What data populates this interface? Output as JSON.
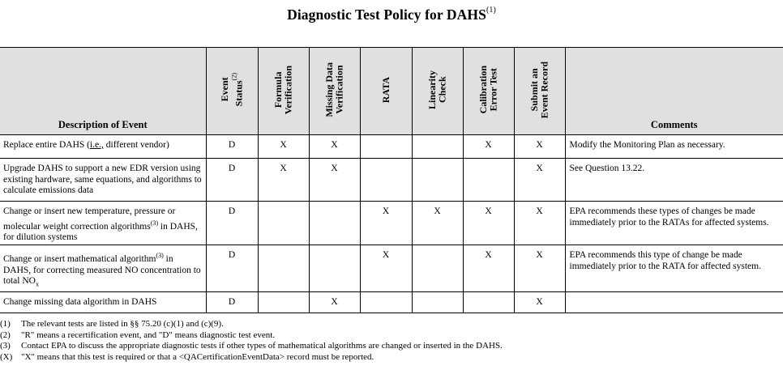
{
  "title": {
    "text": "Diagnostic Test Policy for DAHS",
    "footnote_ref": "(1)"
  },
  "table": {
    "headers": {
      "description": "Description of Event",
      "event_status": "Event\nStatus",
      "event_status_ref": "(2)",
      "formula_verification": "Formula\nVerification",
      "missing_data_verification": "Missing Data\nVerification",
      "rata": "RATA",
      "linearity_check": "Linearity\nCheck",
      "calibration_error_test": "Calibration\nError Test",
      "submit_event_record": "Submit an\nEvent Record",
      "comments": "Comments"
    },
    "rows": [
      {
        "desc_a": "Replace entire DAHS (",
        "desc_b": "i.e.,",
        "desc_c": " different vendor)",
        "status": "D",
        "formula": "X",
        "missing": "X",
        "rata": "",
        "linearity": "",
        "calibration": "X",
        "submit": "X",
        "comment": "Modify the Monitoring Plan as necessary."
      },
      {
        "desc": "Upgrade DAHS to support a new EDR version using existing hardware, same equations, and algorithms to calculate emissions data",
        "status": "D",
        "formula": "X",
        "missing": "X",
        "rata": "",
        "linearity": "",
        "calibration": "",
        "submit": "X",
        "comment": "See Question 13.22."
      },
      {
        "desc_a": "Change or insert new temperature, pressure or molecular weight correction algorithms",
        "desc_ref": "(3)",
        "desc_b": " in DAHS, for dilution systems",
        "status": "D",
        "formula": "",
        "missing": "",
        "rata": "X",
        "linearity": "X",
        "calibration": "X",
        "submit": "X",
        "comment": "EPA recommends these types of changes be made immediately prior to the RATAs for affected systems."
      },
      {
        "desc_a": "Change or insert mathematical algorithm",
        "desc_ref": "(3)",
        "desc_b": " in DAHS, for correcting measured NO concentration to total NO",
        "desc_sub": "x",
        "status": "D",
        "formula": "",
        "missing": "",
        "rata": "X",
        "linearity": "",
        "calibration": "X",
        "submit": "X",
        "comment": "EPA recommends this type of change be made immediately prior to the RATA for affected system."
      },
      {
        "desc": "Change missing data algorithm in DAHS",
        "status": "D",
        "formula": "",
        "missing": "X",
        "rata": "",
        "linearity": "",
        "calibration": "",
        "submit": "X",
        "comment": ""
      }
    ]
  },
  "footnotes": [
    {
      "num": "(1)",
      "text": "The relevant tests are listed in §§ 75.20 (c)(1) and (c)(9)."
    },
    {
      "num": "(2)",
      "text": "\"R\" means a recertification event, and \"D\" means diagnostic test event."
    },
    {
      "num": "(3)",
      "text": "Contact EPA to discuss the appropriate diagnostic tests if other types of mathematical algorithms are changed or inserted in the DAHS."
    },
    {
      "num": "(X)",
      "text": "\"X\" means that this test is required or that a <QACertificationEventData> record must be reported."
    }
  ]
}
